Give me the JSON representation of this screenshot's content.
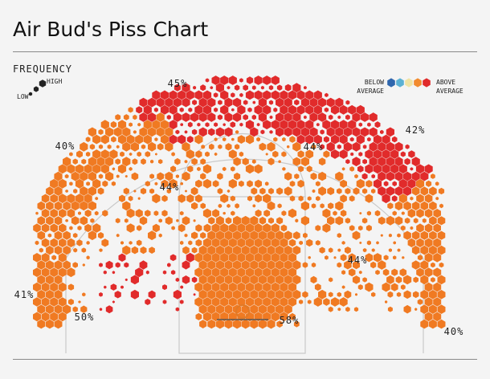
{
  "header": {
    "title": "Air Bud's Piss Chart"
  },
  "frequency_legend": {
    "title": "FREQUENCY",
    "low": "LOW",
    "high": "HIGH"
  },
  "accuracy_legend": {
    "below": "BELOW\nAVERAGE",
    "above": "ABOVE\nAVERAGE",
    "colors": [
      "#2f66ad",
      "#5bb1d3",
      "#efe3a3",
      "#f28b2e",
      "#e02a2a"
    ]
  },
  "colors": {
    "orange": "#f07a22",
    "red": "#e12b2b",
    "court_lines": "#c9c9c9",
    "rim": "#e07a27"
  },
  "chart_data": {
    "type": "heatmap",
    "title": "Air Bud's Piss Chart",
    "zones": [
      {
        "label": "45%",
        "category": "above"
      },
      {
        "label": "42%",
        "category": "above"
      },
      {
        "label": "40%",
        "category": "average"
      },
      {
        "label": "44%",
        "category": "average"
      },
      {
        "label": "44%",
        "category": "average"
      },
      {
        "label": "44%",
        "category": "average"
      },
      {
        "label": "41%",
        "category": "average"
      },
      {
        "label": "50%",
        "category": "above"
      },
      {
        "label": "58%",
        "category": "average"
      },
      {
        "label": "40%",
        "category": "average"
      }
    ]
  }
}
